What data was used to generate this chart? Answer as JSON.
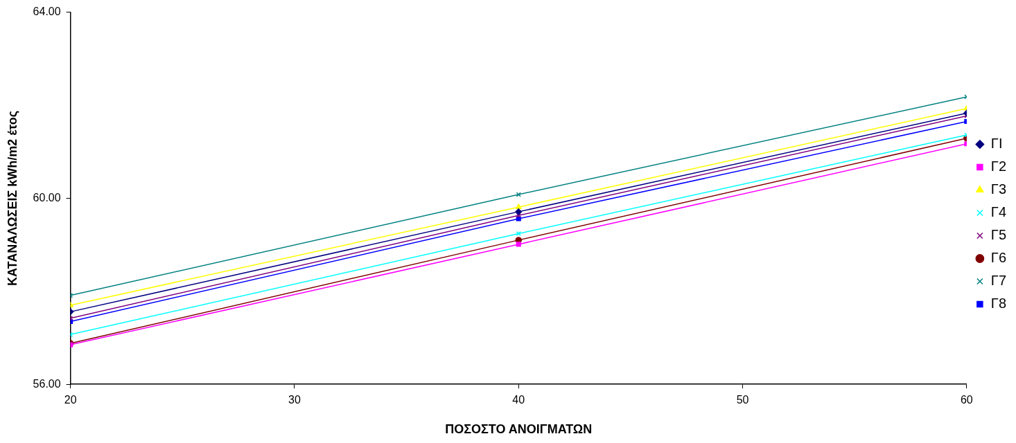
{
  "chart_data": {
    "type": "line",
    "xlabel": "ΠΟΣΟΣΤΟ ΑΝΟΙΓΜΑΤΩΝ",
    "ylabel": "ΚΑΤΑΝΑΛΩΣΕΙΣ kWh/m2 έτος",
    "x": [
      20,
      40,
      60
    ],
    "xlim": [
      20,
      60
    ],
    "xticks": [
      20,
      30,
      40,
      50,
      60
    ],
    "ylim": [
      56,
      64
    ],
    "yticks": [
      {
        "value": 56,
        "label": "56.00"
      },
      {
        "value": 60,
        "label": "60.00"
      },
      {
        "value": 64,
        "label": "64.00"
      }
    ],
    "grid": false,
    "legend": "right",
    "line_style": "solid",
    "series": [
      {
        "name": "ΓΙ",
        "color": "#000080",
        "marker": "diamond",
        "values": [
          57.56,
          59.71,
          61.83
        ]
      },
      {
        "name": "Γ2",
        "color": "#ff00ff",
        "marker": "square",
        "values": [
          56.85,
          59.01,
          61.17
        ]
      },
      {
        "name": "Γ3",
        "color": "#ffff00",
        "marker": "triangle",
        "values": [
          57.7,
          59.81,
          61.93
        ]
      },
      {
        "name": "Γ4",
        "color": "#00ffff",
        "marker": "cross",
        "values": [
          57.07,
          59.24,
          61.36
        ]
      },
      {
        "name": "Γ5",
        "color": "#800080",
        "marker": "cross",
        "values": [
          57.42,
          59.63,
          61.77
        ]
      },
      {
        "name": "Γ6",
        "color": "#800000",
        "marker": "circle",
        "values": [
          56.88,
          59.1,
          61.29
        ]
      },
      {
        "name": "Γ7",
        "color": "#008080",
        "marker": "cross",
        "values": [
          57.91,
          60.08,
          62.18
        ]
      },
      {
        "name": "Γ8",
        "color": "#0000ff",
        "marker": "square",
        "values": [
          57.35,
          59.56,
          61.65
        ]
      }
    ]
  }
}
